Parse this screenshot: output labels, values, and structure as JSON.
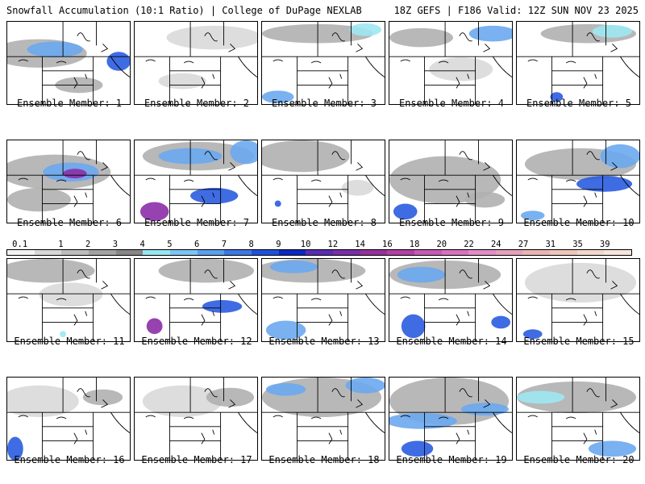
{
  "header": {
    "left": "Snowfall Accumulation (10:1 Ratio) | College of DuPage NEXLAB",
    "right": "18Z GEFS | F186 Valid: 12Z SUN NOV 23 2025"
  },
  "members": [
    {
      "label": "Ensemble Member: 1"
    },
    {
      "label": "Ensemble Member: 2"
    },
    {
      "label": "Ensemble Member: 3"
    },
    {
      "label": "Ensemble Member: 4"
    },
    {
      "label": "Ensemble Member: 5"
    },
    {
      "label": "Ensemble Member: 6"
    },
    {
      "label": "Ensemble Member: 7"
    },
    {
      "label": "Ensemble Member: 8"
    },
    {
      "label": "Ensemble Member: 9"
    },
    {
      "label": "Ensemble Member: 10"
    },
    {
      "label": "Ensemble Member: 11"
    },
    {
      "label": "Ensemble Member: 12"
    },
    {
      "label": "Ensemble Member: 13"
    },
    {
      "label": "Ensemble Member: 14"
    },
    {
      "label": "Ensemble Member: 15"
    },
    {
      "label": "Ensemble Member: 16"
    },
    {
      "label": "Ensemble Member: 17"
    },
    {
      "label": "Ensemble Member: 18"
    },
    {
      "label": "Ensemble Member: 19"
    },
    {
      "label": "Ensemble Member: 20"
    }
  ],
  "colorbar": {
    "labels": [
      "0.1",
      "1",
      "2",
      "3",
      "4",
      "5",
      "6",
      "7",
      "8",
      "9",
      "10",
      "12",
      "14",
      "16",
      "18",
      "20",
      "22",
      "24",
      "27",
      "31",
      "35",
      "39"
    ],
    "colors": [
      "#f2f2f2",
      "#d8d8d8",
      "#bdbdbd",
      "#a2a2a2",
      "#878787",
      "#96e6f0",
      "#7cc4f4",
      "#5aa0ee",
      "#3c78e6",
      "#1e50dc",
      "#0a28c8",
      "#5a2cb4",
      "#7a2ea8",
      "#96309c",
      "#b23ea6",
      "#c85ab4",
      "#d672c0",
      "#e28cc8",
      "#e6a0bc",
      "#eab4b4",
      "#eec6bc",
      "#f2d8cc",
      "#f6e6dc"
    ]
  },
  "colors": {
    "light_gray": "#d9d9d9",
    "mid_gray": "#b0b0b0",
    "dark_gray": "#8a8a8a",
    "cyan": "#9fe8f2",
    "light_blue": "#6aa8f0",
    "blue": "#2a5ce0",
    "purple": "#8c2ea8"
  }
}
